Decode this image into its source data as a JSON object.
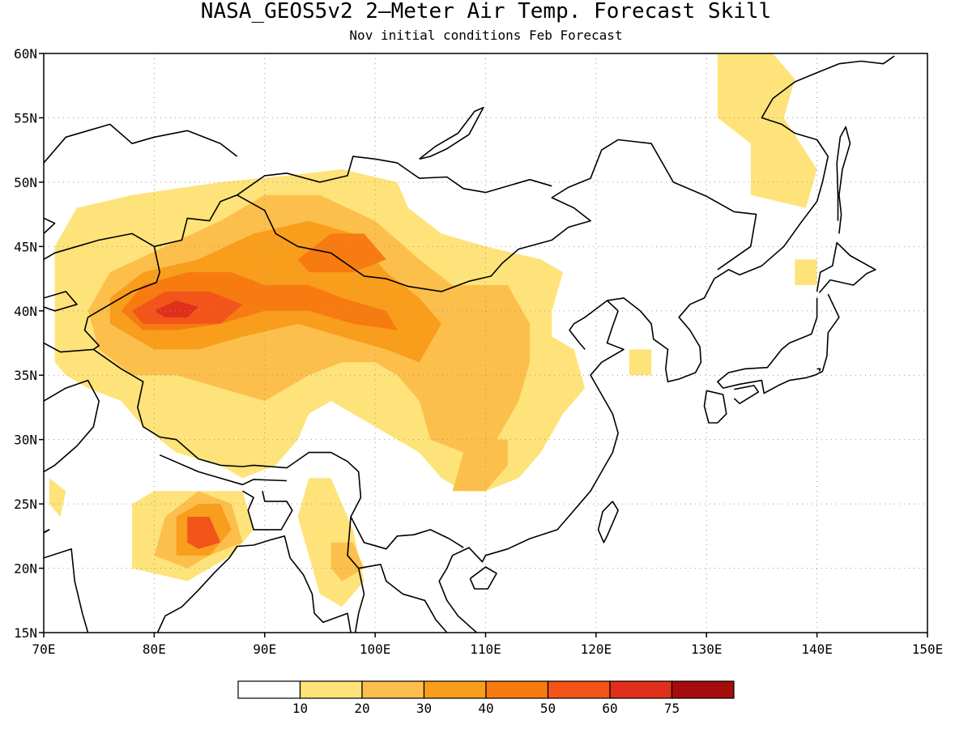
{
  "title": "NASA_GEOS5v2 2–Meter Air Temp. Forecast Skill",
  "subtitle": "Nov initial conditions  Feb Forecast",
  "map": {
    "lon_range": [
      70,
      150
    ],
    "lat_range": [
      15,
      60
    ],
    "lon_ticks": [
      "70E",
      "80E",
      "90E",
      "100E",
      "110E",
      "120E",
      "130E",
      "140E",
      "150E"
    ],
    "lat_ticks": [
      "15N",
      "20N",
      "25N",
      "30N",
      "35N",
      "40N",
      "45N",
      "50N",
      "55N",
      "60N"
    ],
    "grid": "dotted"
  },
  "legend": {
    "bins": [
      {
        "label": "",
        "color": "#ffffff"
      },
      {
        "label": "10",
        "color": "#fee37a"
      },
      {
        "label": "20",
        "color": "#fdbf4b"
      },
      {
        "label": "30",
        "color": "#f99d1c"
      },
      {
        "label": "40",
        "color": "#f77b10"
      },
      {
        "label": "50",
        "color": "#f2541a"
      },
      {
        "label": "60",
        "color": "#e02f1a"
      },
      {
        "label": "75",
        "color": "#a50d0d"
      }
    ]
  },
  "chart_data": {
    "type": "heatmap",
    "title": "NASA_GEOS5v2 2–Meter Air Temp. Forecast Skill",
    "subtitle": "Nov initial conditions  Feb Forecast",
    "x_range": [
      70,
      150
    ],
    "y_range": [
      15,
      60
    ],
    "xlabel": "",
    "ylabel": "",
    "grid": true,
    "colorbar": [
      10,
      20,
      30,
      40,
      50,
      60,
      75
    ],
    "regions": [
      {
        "level": 10,
        "polygon": [
          [
            71,
            36
          ],
          [
            71,
            45
          ],
          [
            73,
            48
          ],
          [
            78,
            49
          ],
          [
            86,
            50
          ],
          [
            92,
            50.5
          ],
          [
            97,
            51
          ],
          [
            102,
            50
          ],
          [
            103,
            48
          ],
          [
            106,
            46
          ],
          [
            110,
            45
          ],
          [
            115,
            44
          ],
          [
            117,
            43
          ],
          [
            116,
            40
          ],
          [
            116,
            38
          ],
          [
            118,
            37
          ],
          [
            119,
            34
          ],
          [
            117,
            32
          ],
          [
            115,
            29
          ],
          [
            113,
            27
          ],
          [
            110,
            26
          ],
          [
            108,
            26
          ],
          [
            106,
            27
          ],
          [
            104,
            29
          ],
          [
            102,
            30
          ],
          [
            100,
            31
          ],
          [
            98,
            32
          ],
          [
            96,
            33
          ],
          [
            94,
            32
          ],
          [
            93,
            30
          ],
          [
            91,
            28
          ],
          [
            88,
            27
          ],
          [
            86,
            28
          ],
          [
            82,
            29
          ],
          [
            79,
            31
          ],
          [
            77,
            33
          ],
          [
            74,
            34
          ],
          [
            72,
            35
          ]
        ]
      },
      {
        "level": 10,
        "polygon": [
          [
            78,
            25
          ],
          [
            78,
            20
          ],
          [
            83,
            19
          ],
          [
            87,
            21
          ],
          [
            89,
            23
          ],
          [
            88,
            26
          ],
          [
            84,
            26
          ],
          [
            80,
            26
          ]
        ]
      },
      {
        "level": 10,
        "polygon": [
          [
            94,
            27
          ],
          [
            96,
            27
          ],
          [
            98,
            23
          ],
          [
            99,
            19
          ],
          [
            97,
            17
          ],
          [
            95,
            18
          ],
          [
            94,
            21
          ],
          [
            93,
            24
          ]
        ]
      },
      {
        "level": 10,
        "polygon": [
          [
            131,
            60
          ],
          [
            131,
            55
          ],
          [
            134,
            53
          ],
          [
            134,
            49
          ],
          [
            139,
            48
          ],
          [
            140,
            51
          ],
          [
            137,
            55
          ],
          [
            138,
            58
          ],
          [
            136,
            60
          ]
        ]
      },
      {
        "level": 10,
        "polygon": [
          [
            70.5,
            27
          ],
          [
            72,
            26
          ],
          [
            71.5,
            24
          ],
          [
            70.5,
            25
          ]
        ]
      },
      {
        "level": 10,
        "polygon": [
          [
            123,
            37
          ],
          [
            125,
            37
          ],
          [
            125,
            35
          ],
          [
            123,
            35
          ]
        ]
      },
      {
        "level": 10,
        "polygon": [
          [
            138,
            44
          ],
          [
            140,
            44
          ],
          [
            140,
            42
          ],
          [
            138,
            42
          ]
        ]
      },
      {
        "level": 20,
        "polygon": [
          [
            75,
            37
          ],
          [
            74,
            40
          ],
          [
            76,
            43
          ],
          [
            81,
            45
          ],
          [
            86,
            47
          ],
          [
            90,
            49
          ],
          [
            95,
            49
          ],
          [
            100,
            47
          ],
          [
            104,
            44
          ],
          [
            107,
            42
          ],
          [
            112,
            42
          ],
          [
            114,
            39
          ],
          [
            114,
            36
          ],
          [
            113,
            33
          ],
          [
            111,
            30
          ],
          [
            108,
            29
          ],
          [
            105,
            30
          ],
          [
            104,
            33
          ],
          [
            102,
            35
          ],
          [
            100,
            36
          ],
          [
            97,
            36
          ],
          [
            94,
            35
          ],
          [
            90,
            33
          ],
          [
            86,
            34
          ],
          [
            82,
            35
          ],
          [
            78,
            35
          ]
        ]
      },
      {
        "level": 20,
        "polygon": [
          [
            81,
            24
          ],
          [
            80,
            21
          ],
          [
            83,
            20
          ],
          [
            85,
            21
          ],
          [
            88,
            22
          ],
          [
            87,
            25
          ],
          [
            84,
            26
          ]
        ]
      },
      {
        "level": 20,
        "polygon": [
          [
            110,
            30
          ],
          [
            108,
            29
          ],
          [
            107,
            26
          ],
          [
            110,
            26
          ],
          [
            112,
            28
          ],
          [
            112,
            30
          ]
        ]
      },
      {
        "level": 20,
        "polygon": [
          [
            96,
            22
          ],
          [
            98,
            22
          ],
          [
            99,
            20
          ],
          [
            97,
            19
          ],
          [
            96,
            20
          ]
        ]
      },
      {
        "level": 30,
        "polygon": [
          [
            76,
            39
          ],
          [
            76,
            41
          ],
          [
            79,
            43
          ],
          [
            84,
            44
          ],
          [
            89,
            46
          ],
          [
            94,
            47
          ],
          [
            98,
            46
          ],
          [
            101,
            43
          ],
          [
            104,
            41
          ],
          [
            106,
            39
          ],
          [
            104,
            36
          ],
          [
            101,
            37
          ],
          [
            97,
            38
          ],
          [
            93,
            39
          ],
          [
            88,
            38
          ],
          [
            84,
            37
          ],
          [
            80,
            37
          ]
        ]
      },
      {
        "level": 30,
        "polygon": [
          [
            82,
            24
          ],
          [
            82,
            21
          ],
          [
            85,
            21
          ],
          [
            87,
            23
          ],
          [
            86,
            25
          ],
          [
            84,
            25
          ]
        ]
      },
      {
        "level": 40,
        "polygon": [
          [
            77,
            40
          ],
          [
            79,
            42
          ],
          [
            83,
            43
          ],
          [
            87,
            43
          ],
          [
            90,
            42
          ],
          [
            94,
            42
          ],
          [
            97,
            41
          ],
          [
            101,
            40
          ],
          [
            102,
            38.5
          ],
          [
            98,
            39
          ],
          [
            94,
            40
          ],
          [
            90,
            40
          ],
          [
            86,
            39
          ],
          [
            82,
            38.5
          ],
          [
            79,
            38.5
          ]
        ]
      },
      {
        "level": 40,
        "polygon": [
          [
            93,
            44
          ],
          [
            96,
            46
          ],
          [
            99,
            46
          ],
          [
            101,
            44
          ],
          [
            98,
            43
          ],
          [
            94,
            43
          ]
        ]
      },
      {
        "level": 50,
        "polygon": [
          [
            78,
            40
          ],
          [
            81,
            41.5
          ],
          [
            85,
            41.5
          ],
          [
            88,
            40.5
          ],
          [
            86,
            39
          ],
          [
            82,
            39
          ],
          [
            79,
            39
          ]
        ]
      },
      {
        "level": 50,
        "polygon": [
          [
            83,
            24
          ],
          [
            85,
            24
          ],
          [
            86,
            22
          ],
          [
            84,
            21.5
          ],
          [
            83,
            22
          ]
        ]
      },
      {
        "level": 60,
        "polygon": [
          [
            80,
            40
          ],
          [
            82,
            40.8
          ],
          [
            84,
            40.3
          ],
          [
            83,
            39.5
          ],
          [
            81,
            39.5
          ]
        ]
      }
    ]
  }
}
